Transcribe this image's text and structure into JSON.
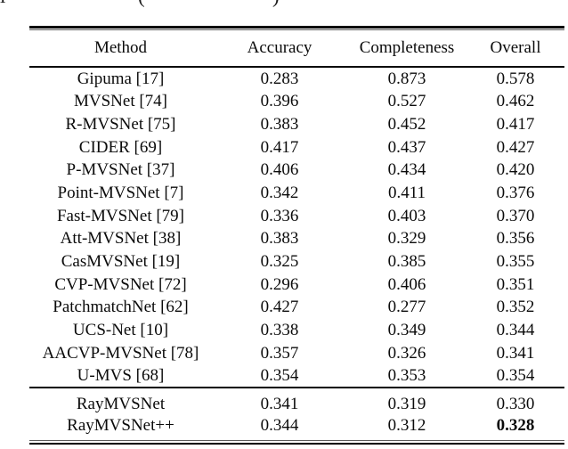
{
  "caption_fragment": {
    "stem_glyph": "l",
    "open_paren": "(",
    "close_paren": ")"
  },
  "colors": {
    "text": "#0b0b0b",
    "rule": "#000000",
    "rule_secondary": "#5a5a5a",
    "background": "#ffffff"
  },
  "table": {
    "headers": [
      "Method",
      "Accuracy",
      "Completeness",
      "Overall"
    ],
    "rows": [
      {
        "cells": [
          "Gipuma [17]",
          "0.283",
          "0.873",
          "0.578"
        ],
        "bold": [
          false,
          false,
          false,
          false
        ]
      },
      {
        "cells": [
          "MVSNet [74]",
          "0.396",
          "0.527",
          "0.462"
        ],
        "bold": [
          false,
          false,
          false,
          false
        ]
      },
      {
        "cells": [
          "R-MVSNet [75]",
          "0.383",
          "0.452",
          "0.417"
        ],
        "bold": [
          false,
          false,
          false,
          false
        ]
      },
      {
        "cells": [
          "CIDER [69]",
          "0.417",
          "0.437",
          "0.427"
        ],
        "bold": [
          false,
          false,
          false,
          false
        ]
      },
      {
        "cells": [
          "P-MVSNet [37]",
          "0.406",
          "0.434",
          "0.420"
        ],
        "bold": [
          false,
          false,
          false,
          false
        ]
      },
      {
        "cells": [
          "Point-MVSNet [7]",
          "0.342",
          "0.411",
          "0.376"
        ],
        "bold": [
          false,
          false,
          false,
          false
        ]
      },
      {
        "cells": [
          "Fast-MVSNet [79]",
          "0.336",
          "0.403",
          "0.370"
        ],
        "bold": [
          false,
          false,
          false,
          false
        ]
      },
      {
        "cells": [
          "Att-MVSNet [38]",
          "0.383",
          "0.329",
          "0.356"
        ],
        "bold": [
          false,
          false,
          false,
          false
        ]
      },
      {
        "cells": [
          "CasMVSNet [19]",
          "0.325",
          "0.385",
          "0.355"
        ],
        "bold": [
          false,
          false,
          false,
          false
        ]
      },
      {
        "cells": [
          "CVP-MVSNet [72]",
          "0.296",
          "0.406",
          "0.351"
        ],
        "bold": [
          false,
          false,
          false,
          false
        ]
      },
      {
        "cells": [
          "PatchmatchNet [62]",
          "0.427",
          "0.277",
          "0.352"
        ],
        "bold": [
          false,
          false,
          false,
          false
        ]
      },
      {
        "cells": [
          "UCS-Net [10]",
          "0.338",
          "0.349",
          "0.344"
        ],
        "bold": [
          false,
          false,
          false,
          false
        ]
      },
      {
        "cells": [
          "AACVP-MVSNet [78]",
          "0.357",
          "0.326",
          "0.341"
        ],
        "bold": [
          false,
          false,
          false,
          false
        ]
      },
      {
        "cells": [
          "U-MVS [68]",
          "0.354",
          "0.353",
          "0.354"
        ],
        "bold": [
          false,
          false,
          false,
          false
        ]
      }
    ],
    "footer_rows": [
      {
        "cells": [
          "RayMVSNet",
          "0.341",
          "0.319",
          "0.330"
        ],
        "bold": [
          false,
          false,
          false,
          false
        ]
      },
      {
        "cells": [
          "RayMVSNet++",
          "0.344",
          "0.312",
          "0.328"
        ],
        "bold": [
          false,
          false,
          false,
          true
        ]
      }
    ]
  }
}
